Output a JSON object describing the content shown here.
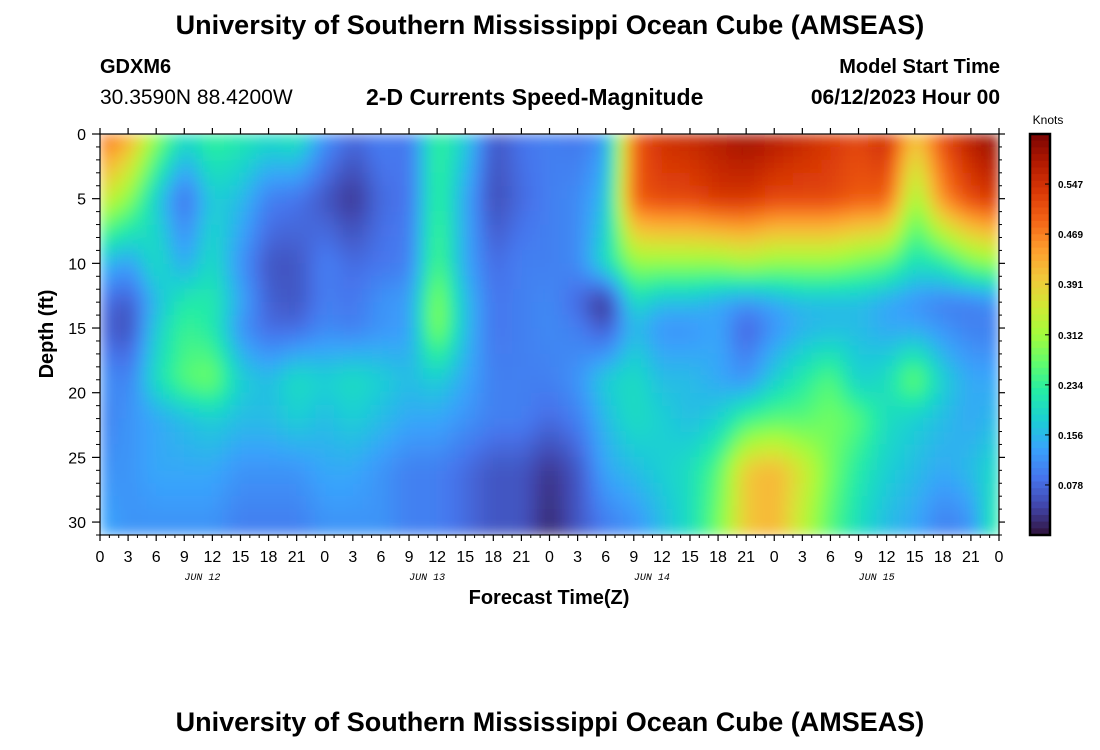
{
  "header": {
    "title": "University of Southern Mississippi Ocean Cube (AMSEAS)",
    "footer_title": "University of Southern Mississippi Ocean Cube (AMSEAS)",
    "station_id": "GDXM6",
    "coords": "30.3590N  88.4200W",
    "plot_title": "2-D Currents Speed-Magnitude",
    "start_label": "Model Start Time",
    "start_date": "06/12/2023 Hour 00"
  },
  "chart_data": {
    "type": "heatmap",
    "title": "2-D Currents Speed-Magnitude",
    "xlabel": "Forecast Time(Z)",
    "ylabel": "Depth (ft)",
    "x_tick_labels": [
      "0",
      "3",
      "6",
      "9",
      "12",
      "15",
      "18",
      "21",
      "0",
      "3",
      "6",
      "9",
      "12",
      "15",
      "18",
      "21",
      "0",
      "3",
      "6",
      "9",
      "12",
      "15",
      "18",
      "21",
      "0",
      "3",
      "6",
      "9",
      "12",
      "15",
      "18",
      "21",
      "0"
    ],
    "day_labels": [
      "JUN 12",
      "JUN 13",
      "JUN 14",
      "JUN 15"
    ],
    "xlim_hours": [
      0,
      96
    ],
    "ylim_ft": [
      0,
      31
    ],
    "y_inverted": true,
    "y_ticks": [
      0,
      5,
      10,
      15,
      20,
      25,
      30
    ],
    "colorbar": {
      "label": "Knots",
      "ticks": [
        0.547,
        0.469,
        0.391,
        0.312,
        0.234,
        0.156,
        0.078
      ],
      "range": [
        0.0,
        0.625
      ],
      "colors": [
        "#30123b",
        "#4145ab",
        "#4675ed",
        "#39a2fc",
        "#1bcfd4",
        "#24eca6",
        "#61fc6c",
        "#a4fc3b",
        "#d1e834",
        "#f3c63a",
        "#fe9b2d",
        "#f36315",
        "#d93806",
        "#b11901",
        "#7a0403"
      ]
    },
    "depth_rows_ft": [
      0,
      5,
      10,
      13,
      15,
      19,
      22,
      26,
      30
    ],
    "time_cols_hours": [
      0,
      3,
      6,
      9,
      12,
      15,
      18,
      21,
      24,
      27,
      30,
      33,
      36,
      39,
      42,
      45,
      48,
      51,
      54,
      57,
      60,
      63,
      66,
      69,
      72,
      75,
      78,
      81,
      84,
      87,
      90,
      93,
      96
    ],
    "values_knots": [
      [
        0.5,
        0.44,
        0.3,
        0.2,
        0.24,
        0.22,
        0.2,
        0.22,
        0.12,
        0.08,
        0.1,
        0.09,
        0.24,
        0.18,
        0.06,
        0.09,
        0.1,
        0.09,
        0.12,
        0.5,
        0.55,
        0.56,
        0.58,
        0.6,
        0.58,
        0.56,
        0.54,
        0.52,
        0.56,
        0.4,
        0.52,
        0.58,
        0.62
      ],
      [
        0.36,
        0.3,
        0.18,
        0.08,
        0.18,
        0.16,
        0.1,
        0.09,
        0.06,
        0.03,
        0.08,
        0.09,
        0.24,
        0.14,
        0.05,
        0.08,
        0.1,
        0.11,
        0.16,
        0.5,
        0.52,
        0.52,
        0.54,
        0.54,
        0.52,
        0.52,
        0.52,
        0.5,
        0.5,
        0.3,
        0.46,
        0.52,
        0.54
      ],
      [
        0.16,
        0.13,
        0.2,
        0.14,
        0.2,
        0.12,
        0.06,
        0.06,
        0.1,
        0.08,
        0.09,
        0.1,
        0.26,
        0.14,
        0.08,
        0.1,
        0.1,
        0.11,
        0.2,
        0.3,
        0.3,
        0.3,
        0.3,
        0.32,
        0.3,
        0.3,
        0.3,
        0.28,
        0.26,
        0.2,
        0.22,
        0.28,
        0.3
      ],
      [
        0.09,
        0.06,
        0.16,
        0.22,
        0.22,
        0.14,
        0.07,
        0.06,
        0.1,
        0.09,
        0.12,
        0.13,
        0.3,
        0.16,
        0.09,
        0.1,
        0.11,
        0.08,
        0.02,
        0.2,
        0.16,
        0.16,
        0.14,
        0.12,
        0.14,
        0.16,
        0.16,
        0.16,
        0.14,
        0.12,
        0.1,
        0.1,
        0.12
      ],
      [
        0.08,
        0.05,
        0.18,
        0.24,
        0.22,
        0.12,
        0.08,
        0.08,
        0.11,
        0.1,
        0.12,
        0.13,
        0.3,
        0.16,
        0.09,
        0.1,
        0.11,
        0.1,
        0.06,
        0.16,
        0.12,
        0.12,
        0.14,
        0.07,
        0.12,
        0.15,
        0.16,
        0.16,
        0.14,
        0.14,
        0.12,
        0.1,
        0.1
      ],
      [
        0.12,
        0.1,
        0.2,
        0.26,
        0.28,
        0.18,
        0.16,
        0.2,
        0.18,
        0.2,
        0.18,
        0.16,
        0.18,
        0.14,
        0.1,
        0.1,
        0.1,
        0.12,
        0.18,
        0.2,
        0.16,
        0.16,
        0.14,
        0.12,
        0.18,
        0.22,
        0.26,
        0.18,
        0.2,
        0.28,
        0.18,
        0.14,
        0.14
      ],
      [
        0.1,
        0.12,
        0.14,
        0.16,
        0.18,
        0.16,
        0.16,
        0.18,
        0.16,
        0.18,
        0.16,
        0.14,
        0.14,
        0.12,
        0.1,
        0.1,
        0.08,
        0.1,
        0.16,
        0.2,
        0.18,
        0.16,
        0.18,
        0.24,
        0.26,
        0.26,
        0.28,
        0.26,
        0.2,
        0.18,
        0.16,
        0.14,
        0.16
      ],
      [
        0.12,
        0.12,
        0.14,
        0.14,
        0.14,
        0.12,
        0.12,
        0.12,
        0.14,
        0.14,
        0.12,
        0.1,
        0.1,
        0.08,
        0.06,
        0.06,
        0.03,
        0.06,
        0.14,
        0.16,
        0.18,
        0.2,
        0.26,
        0.4,
        0.42,
        0.36,
        0.28,
        0.22,
        0.18,
        0.16,
        0.14,
        0.16,
        0.2
      ],
      [
        0.14,
        0.12,
        0.12,
        0.12,
        0.12,
        0.1,
        0.1,
        0.1,
        0.12,
        0.12,
        0.12,
        0.1,
        0.1,
        0.08,
        0.06,
        0.06,
        0.02,
        0.06,
        0.1,
        0.12,
        0.16,
        0.2,
        0.28,
        0.4,
        0.42,
        0.34,
        0.26,
        0.2,
        0.16,
        0.14,
        0.1,
        0.12,
        0.24
      ]
    ]
  }
}
